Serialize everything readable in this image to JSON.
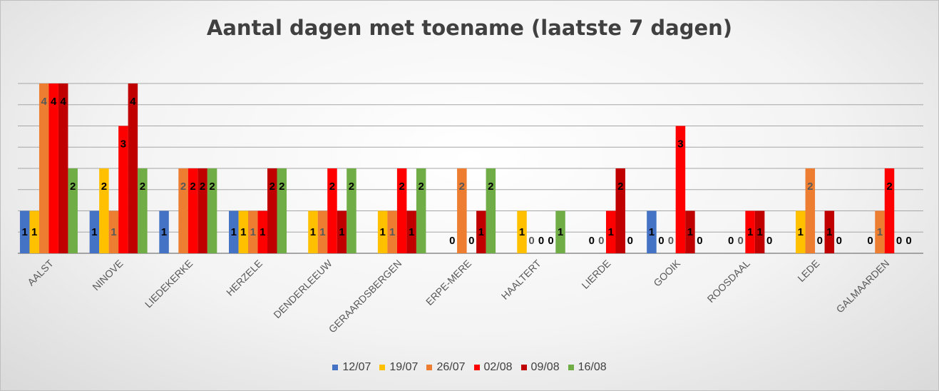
{
  "chart_data": {
    "type": "bar",
    "title": "Aantal dagen met toename (laatste 7 dagen)",
    "xlabel": "",
    "ylabel": "",
    "ylim": [
      0,
      4
    ],
    "categories": [
      "AALST",
      "NINOVE",
      "LIEDEKERKE",
      "HERZELE",
      "DENDERLEEUW",
      "GERAARDSBERGEN",
      "ERPE-MERE",
      "HAALTERT",
      "LIERDE",
      "GOOIK",
      "ROOSDAAL",
      "LEDE",
      "GALMAARDEN"
    ],
    "series": [
      {
        "name": "12/07",
        "color": "#4472C4",
        "values": [
          1,
          1,
          1,
          1,
          null,
          null,
          null,
          null,
          null,
          1,
          null,
          null,
          null
        ]
      },
      {
        "name": "19/07",
        "color": "#FFC000",
        "values": [
          1,
          2,
          null,
          1,
          1,
          1,
          0,
          1,
          0,
          0,
          0,
          1,
          0
        ]
      },
      {
        "name": "26/07",
        "color": "#ED7D31",
        "values": [
          4,
          1,
          2,
          1,
          1,
          1,
          2,
          0,
          0,
          0,
          0,
          2,
          1
        ]
      },
      {
        "name": "02/08",
        "color": "#FF0000",
        "values": [
          4,
          3,
          2,
          1,
          2,
          2,
          0,
          0,
          1,
          3,
          1,
          0,
          2
        ]
      },
      {
        "name": "09/08",
        "color": "#C00000",
        "values": [
          4,
          4,
          2,
          2,
          1,
          1,
          1,
          0,
          2,
          1,
          1,
          1,
          0
        ]
      },
      {
        "name": "16/08",
        "color": "#70AD47",
        "values": [
          2,
          2,
          2,
          2,
          2,
          2,
          2,
          1,
          0,
          0,
          0,
          0,
          0
        ]
      }
    ],
    "legend_position": "bottom",
    "grid": true
  }
}
